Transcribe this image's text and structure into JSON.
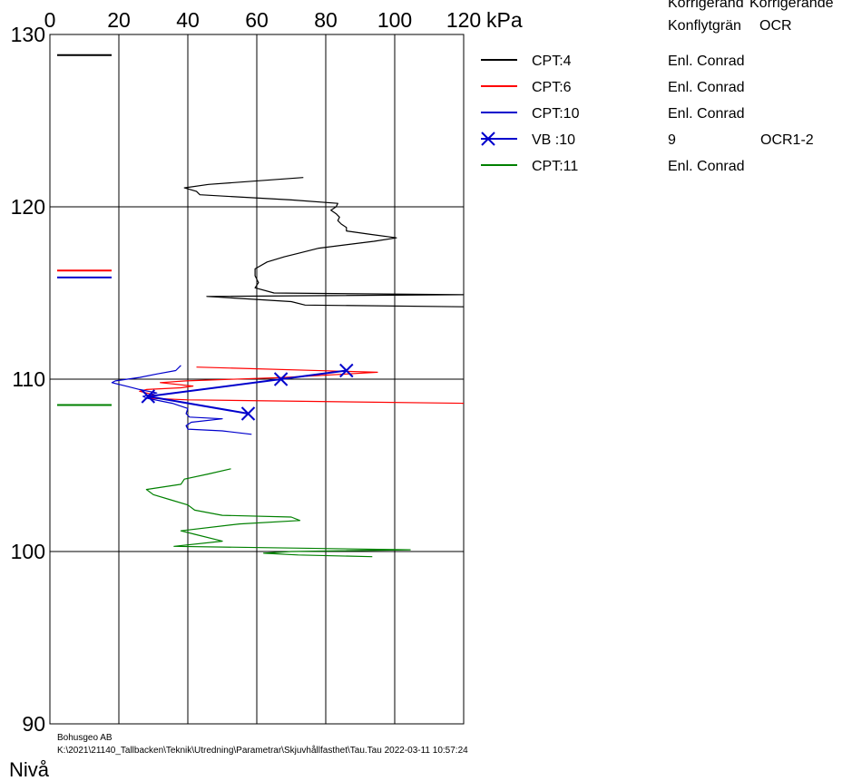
{
  "chart_data": {
    "type": "line",
    "title": "",
    "xlabel": "kPa",
    "ylabel": "Nivå",
    "xlim": [
      0,
      120
    ],
    "ylim": [
      90,
      130
    ],
    "x_ticks": [
      "0",
      "20",
      "40",
      "60",
      "80",
      "100",
      "120"
    ],
    "y_ticks": [
      "90",
      "100",
      "110",
      "120",
      "130"
    ],
    "grid": true,
    "legend_position": "right",
    "legend_header": [
      "Korrigerand",
      "Korrigerande",
      "Konflytgrän",
      "OCR"
    ],
    "series": [
      {
        "name": "CPT:4",
        "color": "#000000",
        "marker": "none",
        "note1": "Enl. Conrad",
        "note2": "",
        "level_line": 128.8,
        "points": [
          [
            73.5,
            121.7
          ],
          [
            46,
            121.3
          ],
          [
            39,
            121.1
          ],
          [
            42.5,
            120.9
          ],
          [
            43.5,
            120.7
          ],
          [
            70,
            120.4
          ],
          [
            83.5,
            120.2
          ],
          [
            83,
            120
          ],
          [
            81.5,
            119.8
          ],
          [
            83,
            119.6
          ],
          [
            84,
            119.4
          ],
          [
            83.5,
            119.2
          ],
          [
            84.5,
            119.0
          ],
          [
            86,
            118.8
          ],
          [
            86,
            118.6
          ],
          [
            93,
            118.4
          ],
          [
            100.5,
            118.2
          ],
          [
            94,
            118.0
          ],
          [
            78,
            117.6
          ],
          [
            72,
            117.3
          ],
          [
            68,
            117.1
          ],
          [
            63,
            116.8
          ],
          [
            59.5,
            116.4
          ],
          [
            59.5,
            116.0
          ],
          [
            60.5,
            115.6
          ],
          [
            59.5,
            115.3
          ],
          [
            65,
            115.0
          ],
          [
            120,
            114.9
          ],
          [
            45.5,
            114.8
          ],
          [
            70,
            114.5
          ],
          [
            74,
            114.3
          ],
          [
            120,
            114.2
          ]
        ]
      },
      {
        "name": "CPT:6",
        "color": "#ff0000",
        "marker": "none",
        "note1": "Enl. Conrad",
        "note2": "",
        "level_line": 116.3,
        "points": [
          [
            42.5,
            110.7
          ],
          [
            95,
            110.4
          ],
          [
            86,
            110.3
          ],
          [
            68,
            110.1
          ],
          [
            39.5,
            109.9
          ],
          [
            32,
            109.8
          ],
          [
            41.5,
            109.6
          ],
          [
            38,
            109.5
          ],
          [
            28,
            109.4
          ],
          [
            26,
            109.3
          ],
          [
            30,
            109.1
          ],
          [
            28,
            108.9
          ],
          [
            40,
            108.8
          ],
          [
            120,
            108.6
          ]
        ]
      },
      {
        "name": "CPT:10",
        "color": "#0000cc",
        "marker": "none",
        "note1": "Enl. Conrad",
        "note2": "",
        "level_line": 115.9,
        "points": [
          [
            38,
            110.8
          ],
          [
            36.5,
            110.5
          ],
          [
            31,
            110.3
          ],
          [
            26,
            110.1
          ],
          [
            19,
            109.9
          ],
          [
            18,
            109.8
          ],
          [
            22,
            109.6
          ],
          [
            26,
            109.4
          ],
          [
            31,
            109.2
          ],
          [
            27,
            109.0
          ],
          [
            28,
            108.9
          ],
          [
            35.5,
            108.6
          ],
          [
            40,
            108.3
          ],
          [
            39.5,
            108.0
          ],
          [
            40.5,
            107.8
          ],
          [
            50,
            107.7
          ],
          [
            41,
            107.5
          ],
          [
            39.5,
            107.3
          ],
          [
            40,
            107.1
          ],
          [
            50,
            107.0
          ],
          [
            58.5,
            106.8
          ]
        ]
      },
      {
        "name": "VB :10",
        "color": "#0000cc",
        "marker": "x",
        "note1": "9",
        "note2": "OCR1-2",
        "level_line": null,
        "points": [
          [
            86,
            110.5
          ],
          [
            67,
            110
          ],
          [
            28.5,
            109.0
          ],
          [
            57.5,
            108
          ]
        ]
      },
      {
        "name": "CPT:11",
        "color": "#008000",
        "marker": "none",
        "note1": "Enl. Conrad",
        "note2": "",
        "level_line": 108.5,
        "points": [
          [
            52.5,
            104.8
          ],
          [
            46,
            104.5
          ],
          [
            39,
            104.2
          ],
          [
            38,
            103.9
          ],
          [
            28,
            103.6
          ],
          [
            30,
            103.3
          ],
          [
            35,
            103.0
          ],
          [
            40,
            102.7
          ],
          [
            42,
            102.4
          ],
          [
            50,
            102.1
          ],
          [
            70,
            102.0
          ],
          [
            72.5,
            101.8
          ],
          [
            55,
            101.6
          ],
          [
            38,
            101.2
          ],
          [
            42,
            101.0
          ],
          [
            50,
            100.6
          ],
          [
            36,
            100.3
          ],
          [
            104.5,
            100.1
          ],
          [
            70,
            100.0
          ],
          [
            62,
            99.9
          ],
          [
            72,
            99.8
          ],
          [
            93.5,
            99.7
          ]
        ]
      }
    ]
  },
  "footer": {
    "company": "Bohusgeo AB",
    "path": "K:\\2021\\21140_Tallbacken\\Teknik\\Utredning\\Parametrar\\Skjuvhållfasthet\\Tau.Tau  2022-03-11 10:57:24"
  }
}
